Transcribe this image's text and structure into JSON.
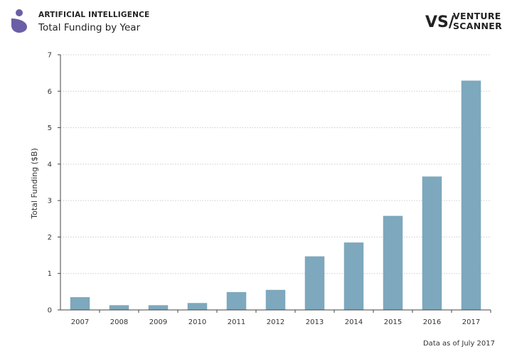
{
  "header": {
    "category": "ARTIFICIAL INTELLIGENCE",
    "title": "Total Funding by Year",
    "icon": "venture-scanner-category-icon"
  },
  "logo": {
    "mark": "VS/",
    "line1": "VENTURE",
    "line2": "SCANNER"
  },
  "footnote": "Data as of July 2017",
  "colors": {
    "bar": "#7ea8bd",
    "icon": "#6a5fa6",
    "grid": "#cccccc",
    "axis": "#444444"
  },
  "chart_data": {
    "type": "bar",
    "categories": [
      "2007",
      "2008",
      "2009",
      "2010",
      "2011",
      "2012",
      "2013",
      "2014",
      "2015",
      "2016",
      "2017"
    ],
    "values": [
      0.35,
      0.13,
      0.13,
      0.19,
      0.49,
      0.55,
      1.47,
      1.85,
      2.58,
      3.66,
      6.29
    ],
    "title": "",
    "xlabel": "",
    "ylabel": "Total Funding ($B)",
    "ylim": [
      0,
      7
    ],
    "yticks": [
      "0",
      "1",
      "2",
      "3",
      "4",
      "5",
      "6",
      "7"
    ],
    "grid": true,
    "legend": "none"
  }
}
